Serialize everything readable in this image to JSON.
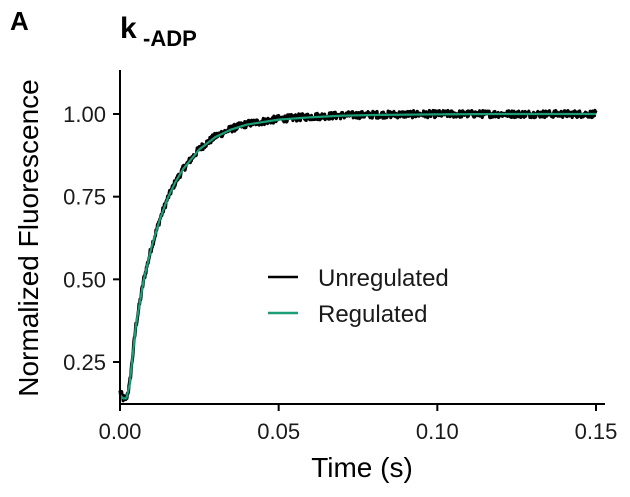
{
  "panel_label": "A",
  "chart_data": {
    "type": "line",
    "title_main": "k",
    "title_sub": "-ADP",
    "xlabel": "Time (s)",
    "ylabel": "Normalized Fluorescence",
    "xlim": [
      0.0,
      0.152
    ],
    "ylim": [
      0.11,
      1.14
    ],
    "x_ticks": [
      0.0,
      0.05,
      0.1,
      0.15
    ],
    "x_tick_labels": [
      "0.00",
      "0.05",
      "0.10",
      "0.15"
    ],
    "y_ticks": [
      0.25,
      0.5,
      0.75,
      1.0
    ],
    "y_tick_labels": [
      "0.25",
      "0.50",
      "0.75",
      "1.00"
    ],
    "grid": false,
    "legend_position": "center-right",
    "series": [
      {
        "name": "Unregulated",
        "color": "#000000",
        "noisy": true,
        "x": [
          0.0,
          0.001,
          0.002,
          0.003,
          0.005,
          0.0075,
          0.01,
          0.0125,
          0.015,
          0.0175,
          0.02,
          0.025,
          0.03,
          0.035,
          0.04,
          0.05,
          0.06,
          0.07,
          0.08,
          0.1,
          0.12,
          0.15
        ],
        "y": [
          0.16,
          0.14,
          0.14,
          0.18,
          0.36,
          0.5,
          0.6,
          0.68,
          0.745,
          0.795,
          0.835,
          0.895,
          0.932,
          0.955,
          0.97,
          0.985,
          0.992,
          0.996,
          0.998,
          1.0,
          1.0,
          1.0
        ]
      },
      {
        "name": "Regulated",
        "color": "#1b9e77",
        "noisy": false,
        "x": [
          0.0,
          0.001,
          0.002,
          0.003,
          0.005,
          0.0075,
          0.01,
          0.0125,
          0.015,
          0.0175,
          0.02,
          0.025,
          0.03,
          0.035,
          0.04,
          0.05,
          0.06,
          0.07,
          0.08,
          0.1,
          0.12,
          0.15
        ],
        "y": [
          0.15,
          0.14,
          0.14,
          0.18,
          0.36,
          0.5,
          0.6,
          0.68,
          0.745,
          0.795,
          0.835,
          0.893,
          0.93,
          0.953,
          0.968,
          0.983,
          0.99,
          0.995,
          0.997,
          0.999,
          1.0,
          1.0
        ]
      }
    ]
  }
}
